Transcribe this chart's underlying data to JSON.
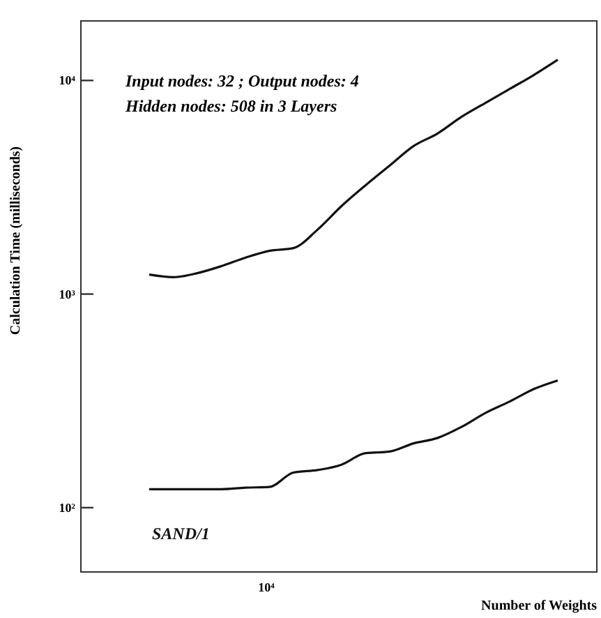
{
  "chart_data": {
    "type": "line",
    "xlabel": "Number of Weights",
    "ylabel": "Calculation Time (milliseconds)",
    "annotations": [
      "Input nodes: 32 ; Output nodes: 4",
      "Hidden nodes: 508 in 3 Layers",
      "10⁴"
    ],
    "log": "y",
    "grid": false,
    "marker": "none",
    "line_style": "solid",
    "categories": [
      null,
      null,
      null,
      null,
      null,
      null,
      null,
      null,
      null,
      null,
      null,
      null,
      null,
      null,
      null,
      null,
      null,
      null
    ],
    "ylim": [
      50,
      19000
    ],
    "yticks": [
      {
        "value": 100,
        "label": "10²"
      },
      {
        "value": 1000,
        "label": "10³"
      },
      {
        "value": 10000,
        "label": "10⁴"
      }
    ],
    "series": [
      {
        "color": "#111111",
        "values": [
          1234,
          1200,
          1253,
          1351,
          1480,
          1594,
          1642,
          2000,
          2580,
          3230,
          3990,
          4930,
          5650,
          6760,
          7860,
          9130,
          10600,
          12500
        ]
      },
      {
        "name": "SAND/1",
        "color": "#111111",
        "values": [
          122,
          122,
          122,
          122,
          124,
          125,
          146,
          150,
          159,
          180,
          183,
          200,
          212,
          239,
          278,
          314,
          359,
          394
        ]
      }
    ]
  }
}
